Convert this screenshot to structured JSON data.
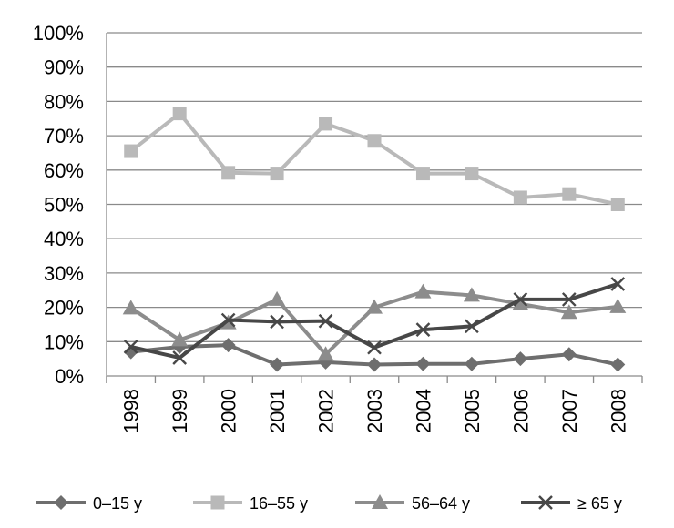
{
  "chart_data": {
    "type": "line",
    "title": "",
    "xlabel": "",
    "ylabel": "",
    "categories": [
      "1998",
      "1999",
      "2000",
      "2001",
      "2002",
      "2003",
      "2004",
      "2005",
      "2006",
      "2007",
      "2008"
    ],
    "ylim": [
      0,
      100
    ],
    "yticks": [
      "0%",
      "10%",
      "20%",
      "30%",
      "40%",
      "50%",
      "60%",
      "70%",
      "80%",
      "90%",
      "100%"
    ],
    "grid": "horizontal",
    "legend_position": "bottom",
    "series": [
      {
        "name": "0–15 y",
        "marker": "diamond",
        "color": "#6e6e6e",
        "values": [
          7,
          8.5,
          9,
          3.3,
          4,
          3.3,
          3.5,
          3.5,
          5,
          6.3,
          3.3
        ]
      },
      {
        "name": "16–55 y",
        "marker": "square",
        "color": "#b9b9b9",
        "values": [
          65.5,
          76.5,
          59.2,
          59,
          73.5,
          68.5,
          59,
          59,
          52,
          53,
          50
        ]
      },
      {
        "name": "56–64 y",
        "marker": "triangle",
        "color": "#8c8c8c",
        "values": [
          19.8,
          10.5,
          15.5,
          22.3,
          6.3,
          20,
          24.5,
          23.5,
          21,
          18.5,
          20.2
        ]
      },
      {
        "name": "≥ 65 y",
        "marker": "x",
        "color": "#474747",
        "values": [
          8.5,
          5.3,
          16.3,
          15.8,
          16,
          8.3,
          13.5,
          14.5,
          22.3,
          22.3,
          26.8
        ]
      }
    ]
  }
}
